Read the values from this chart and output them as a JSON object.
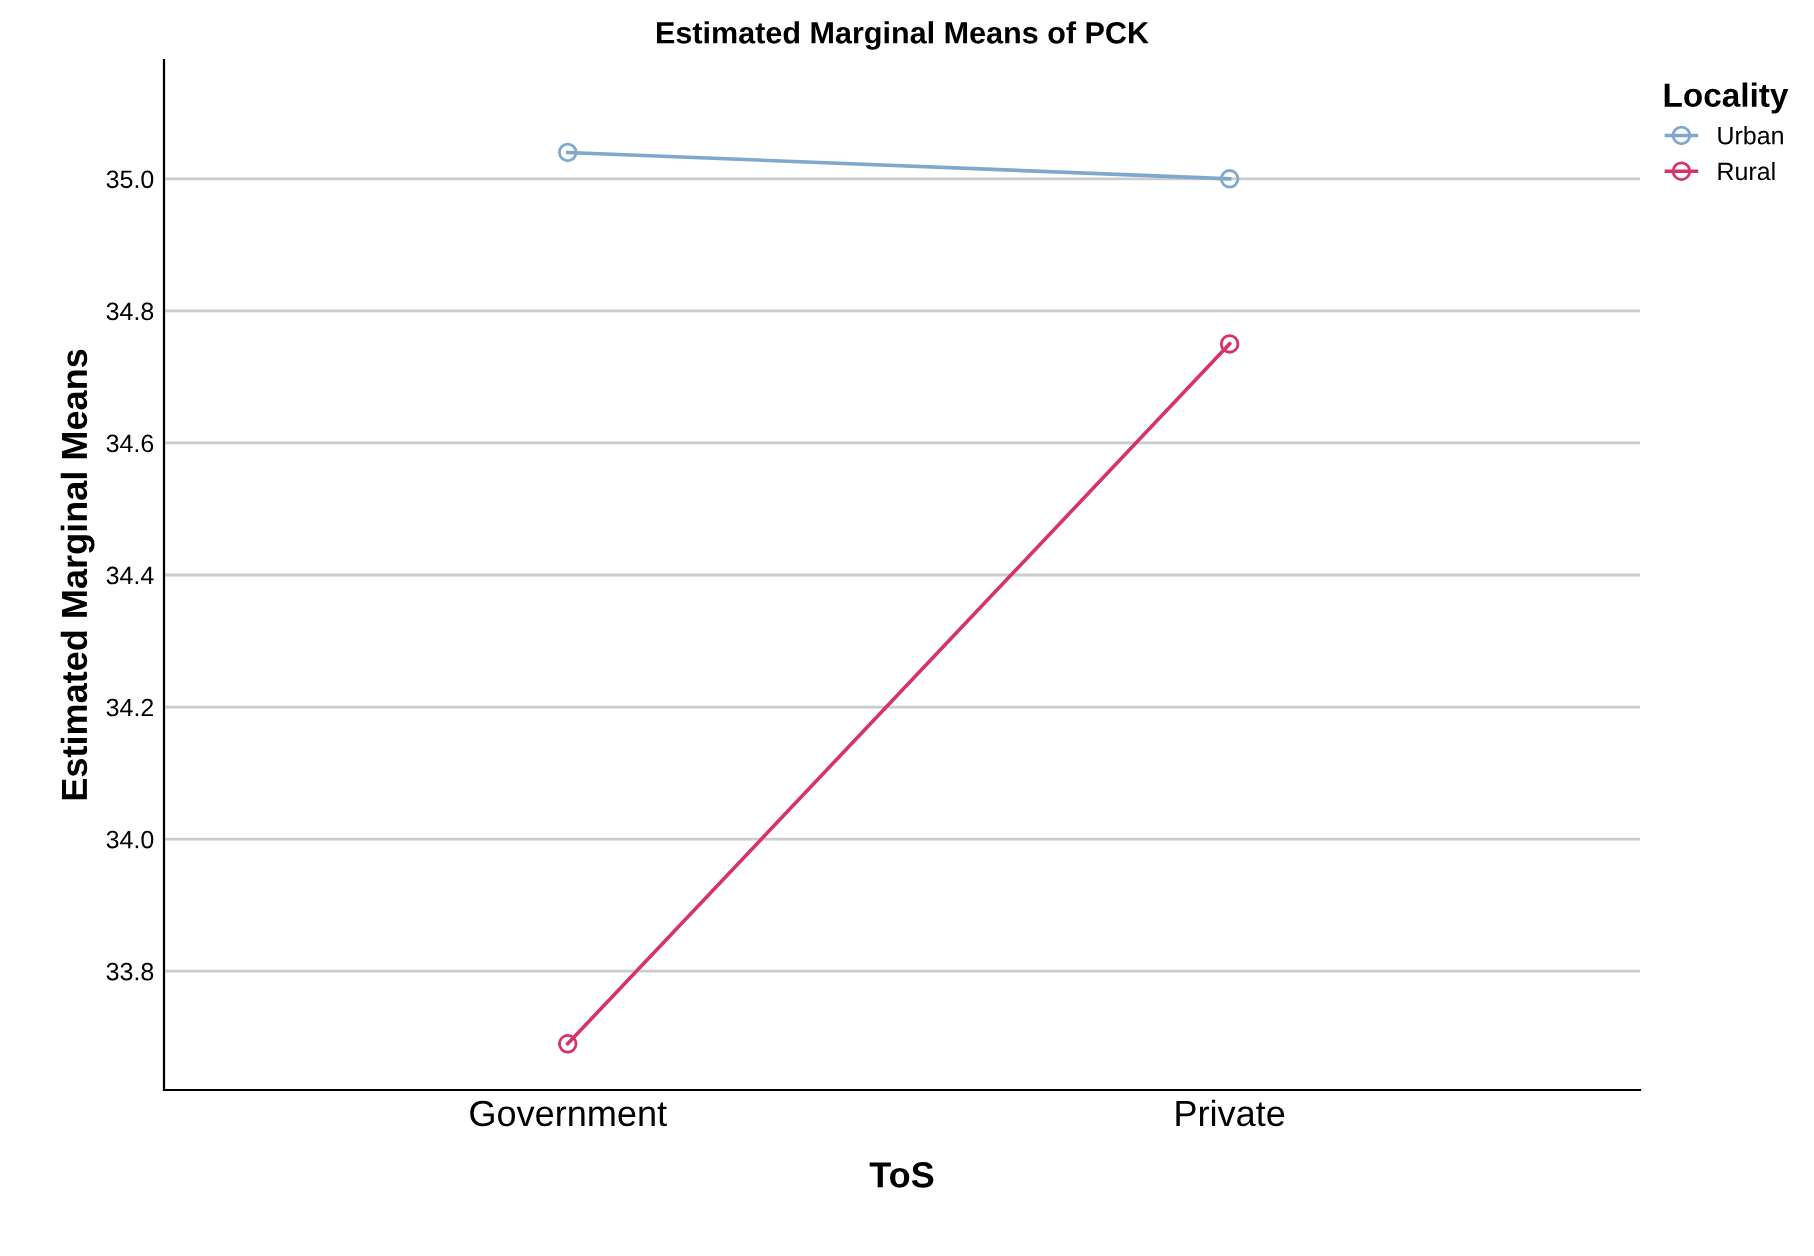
{
  "chart_data": {
    "type": "line",
    "title": "Estimated Marginal Means of PCK",
    "xlabel": "ToS",
    "ylabel": "Estimated Marginal Means",
    "legend_title": "Locality",
    "categories": [
      "Government",
      "Private"
    ],
    "series": [
      {
        "name": "Urban",
        "color": "#7fa8cc",
        "values": [
          35.04,
          35.0
        ]
      },
      {
        "name": "Rural",
        "color": "#d6336b",
        "values": [
          33.69,
          34.75
        ]
      }
    ],
    "ylim": [
      33.62,
      35.18
    ],
    "yticks": [
      {
        "value": 33.8,
        "label": "33.8"
      },
      {
        "value": 34.0,
        "label": "34.0"
      },
      {
        "value": 34.2,
        "label": "34.2"
      },
      {
        "value": 34.4,
        "label": "34.4"
      },
      {
        "value": 34.6,
        "label": "34.6"
      },
      {
        "value": 34.8,
        "label": "34.8"
      },
      {
        "value": 35.0,
        "label": "35.0"
      }
    ],
    "grid": "y",
    "legend": "top right",
    "marker": "circle",
    "line_style": "solid"
  }
}
